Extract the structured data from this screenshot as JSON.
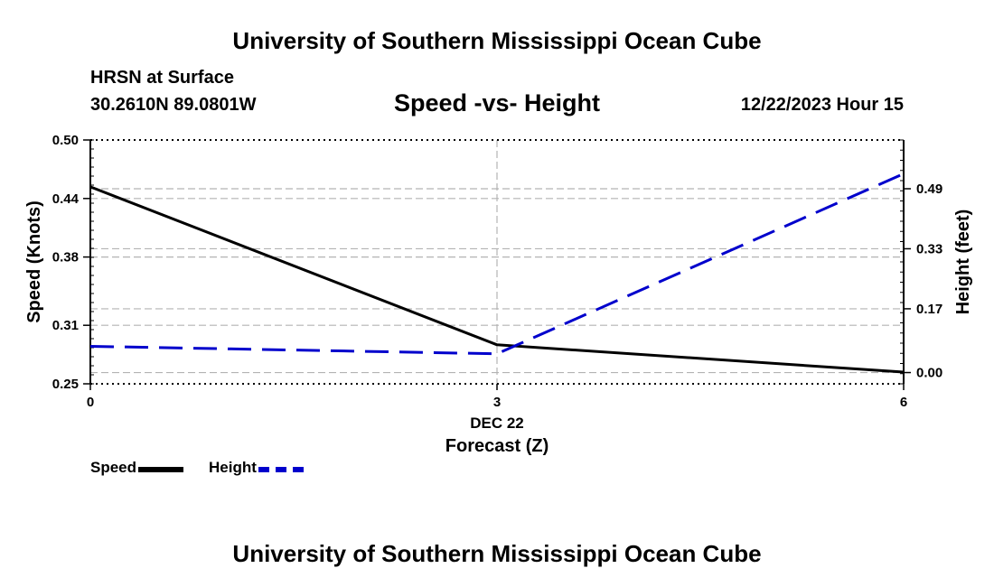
{
  "header": {
    "title": "University of Southern Mississippi Ocean Cube",
    "station": "HRSN at Surface",
    "coords": "30.2610N  89.0801W",
    "chart_title": "Speed -vs- Height",
    "timestamp": "12/22/2023 Hour 15"
  },
  "footer": {
    "title": "University of Southern Mississippi Ocean Cube"
  },
  "colors": {
    "speed": "#000000",
    "height": "#0000cc",
    "grid": "#b3b3b3"
  },
  "chart_data": {
    "type": "line",
    "title": "Speed -vs- Height",
    "xlabel": "Forecast (Z)",
    "x_sublabel": "DEC 22",
    "x": [
      0,
      3,
      6
    ],
    "x_ticks": [
      "0",
      "3",
      "6"
    ],
    "xlim": [
      0,
      6
    ],
    "ylabel": "Speed (Knots)",
    "ylim": [
      0.25,
      0.5
    ],
    "y_ticks": [
      "0.50",
      "0.44",
      "0.38",
      "0.31",
      "0.25"
    ],
    "y2label": "Height (feet)",
    "y2lim": [
      -0.03,
      0.62
    ],
    "y2_ticks": [
      "0.49",
      "0.33",
      "0.17",
      "0.00"
    ],
    "series": [
      {
        "name": "Speed",
        "axis": "left",
        "style": "solid",
        "values": [
          0.452,
          0.29,
          0.262
        ]
      },
      {
        "name": "Height",
        "axis": "right",
        "style": "dashed",
        "values": [
          0.07,
          0.05,
          0.53
        ]
      }
    ],
    "legend": [
      "Speed",
      "Height"
    ],
    "legend_position": "bottom-left",
    "grid": true
  }
}
